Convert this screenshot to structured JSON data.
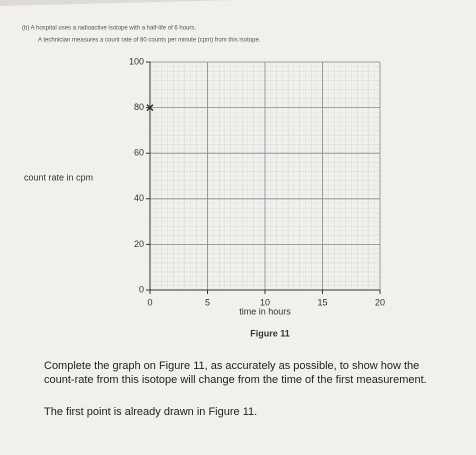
{
  "question": [
    "(b) A hospital uses a radioactive isotope with a half-life of 6 hours.",
    "A technician measures a count rate of 80 counts per minute (cpm) from this isotope."
  ],
  "chart_data": {
    "type": "scatter",
    "x_label": "time in hours",
    "y_label": "count rate in cpm",
    "x": [
      0
    ],
    "values": [
      80
    ],
    "color": "#333333",
    "xlim": [
      0,
      20
    ],
    "xticks": [
      0,
      5,
      10,
      15,
      20
    ],
    "ylim": [
      0,
      100
    ],
    "yticks": [
      0,
      20,
      40,
      60,
      80,
      100
    ],
    "grid": true
  },
  "caption": "Figure 11",
  "instructions": [
    "Complete the graph on Figure 11, as accurately as possible, to show how the",
    "count-rate from this isotope will change from the time of the first measurement."
  ],
  "note": "The first point is already drawn in Figure 11."
}
